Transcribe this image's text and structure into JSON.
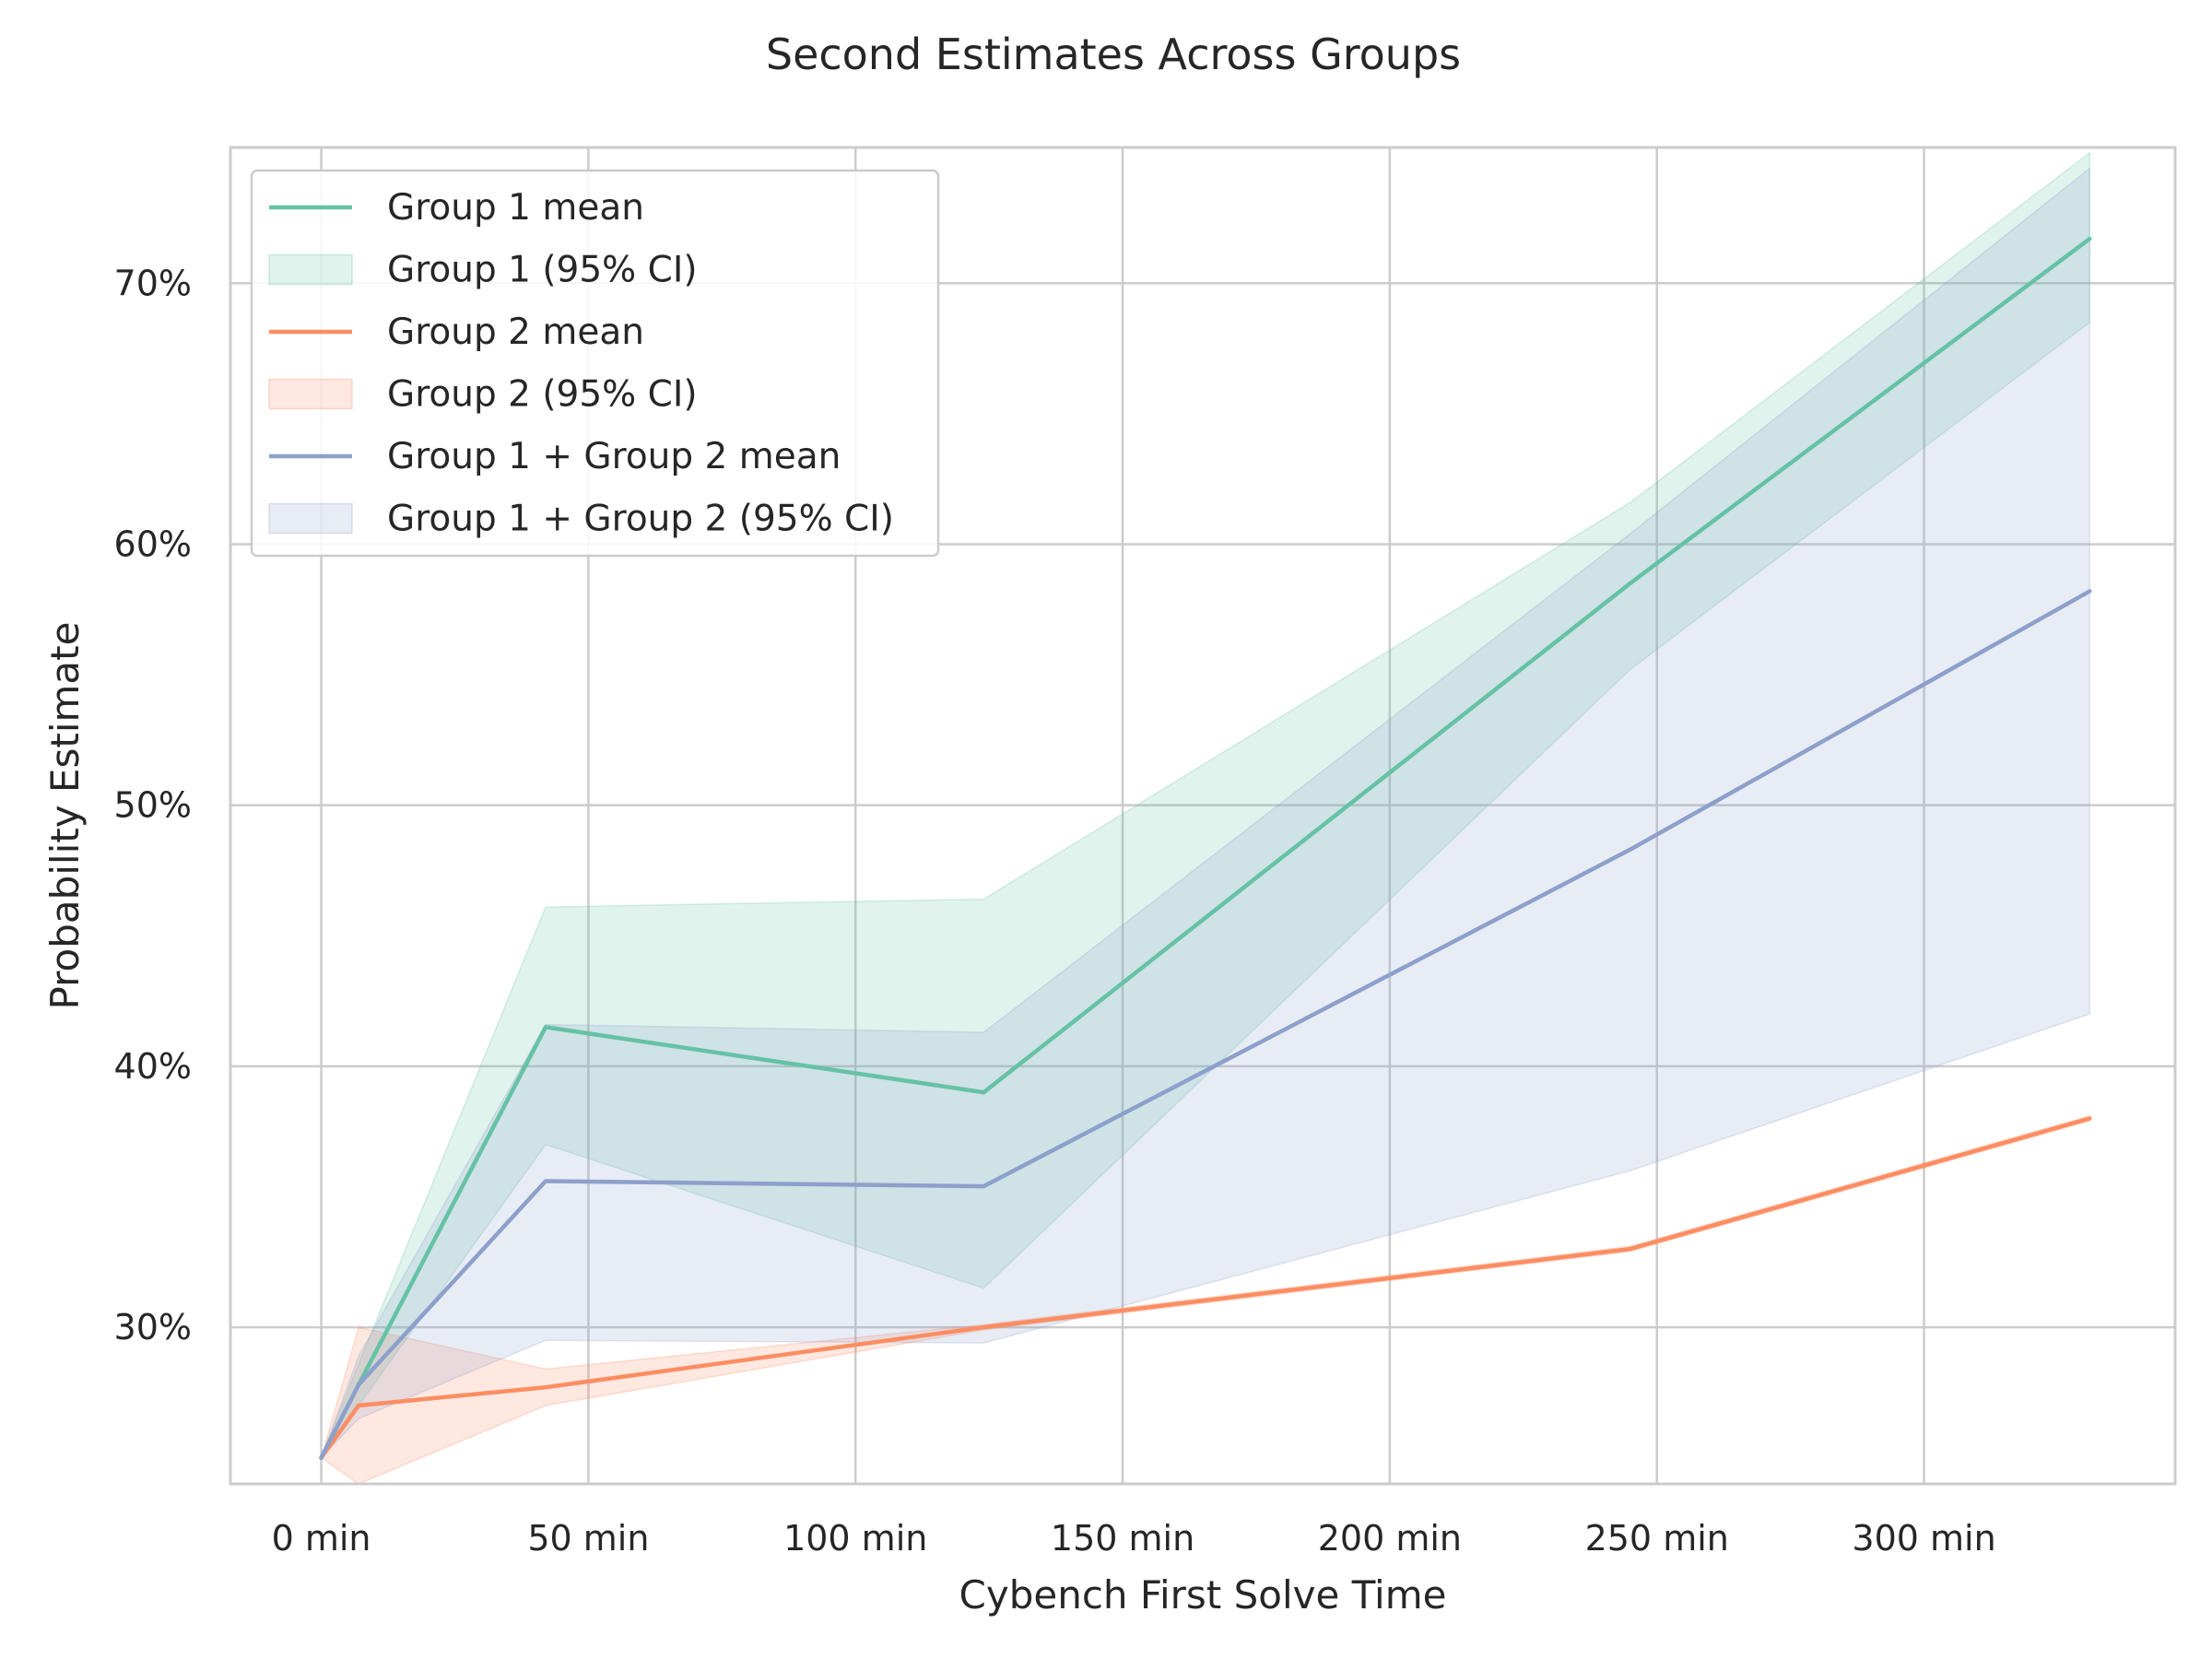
{
  "colors": {
    "group1": "#66c2a5",
    "group2": "#fc8d62",
    "combined": "#8da0cb",
    "grid": "#cccccc",
    "frame": "#cccccc",
    "text": "#262626"
  },
  "chart_data": {
    "type": "line",
    "title": "Second Estimates Across Groups",
    "xlabel": "Cybench First Solve Time",
    "ylabel": "Probability Estimate",
    "xlim": [
      -17,
      347
    ],
    "ylim": [
      24.0,
      75.2
    ],
    "x_ticks": [
      0,
      50,
      100,
      150,
      200,
      250,
      300
    ],
    "x_tick_labels": [
      "0 min",
      "50 min",
      "100 min",
      "150 min",
      "200 min",
      "250 min",
      "300 min"
    ],
    "y_ticks": [
      30,
      40,
      50,
      60,
      70
    ],
    "y_tick_labels": [
      "30%",
      "40%",
      "50%",
      "60%",
      "70%"
    ],
    "grid": true,
    "legend_position": "upper-left",
    "x": [
      0,
      7,
      42,
      124,
      245,
      331
    ],
    "series": [
      {
        "key": "group1",
        "name": "Group 1 mean",
        "ci_name": "Group 1 (95% CI)",
        "values": [
          25.0,
          27.8,
          41.5,
          39.0,
          58.5,
          71.7
        ],
        "ci_lower": [
          25.0,
          27.0,
          37.0,
          31.5,
          55.2,
          68.5
        ],
        "ci_upper": [
          25.0,
          28.6,
          46.1,
          46.4,
          61.6,
          75.0
        ]
      },
      {
        "key": "group2",
        "name": "Group 2 mean",
        "ci_name": "Group 2 (95% CI)",
        "values": [
          25.0,
          27.0,
          27.7,
          30.0,
          33.0,
          38.0
        ],
        "ci_lower": [
          25.0,
          24.0,
          27.0,
          29.9,
          32.9,
          37.9
        ],
        "ci_upper": [
          25.0,
          30.0,
          28.4,
          30.1,
          33.1,
          38.1
        ]
      },
      {
        "key": "combined",
        "name": "Group 1 + Group 2 mean",
        "ci_name": "Group 1 + Group 2 (95% CI)",
        "values": [
          25.0,
          27.8,
          35.6,
          35.4,
          48.3,
          58.2
        ],
        "ci_lower": [
          25.0,
          26.5,
          29.5,
          29.4,
          36.0,
          42.0
        ],
        "ci_upper": [
          25.0,
          28.9,
          41.6,
          41.3,
          60.4,
          74.4
        ]
      }
    ]
  }
}
